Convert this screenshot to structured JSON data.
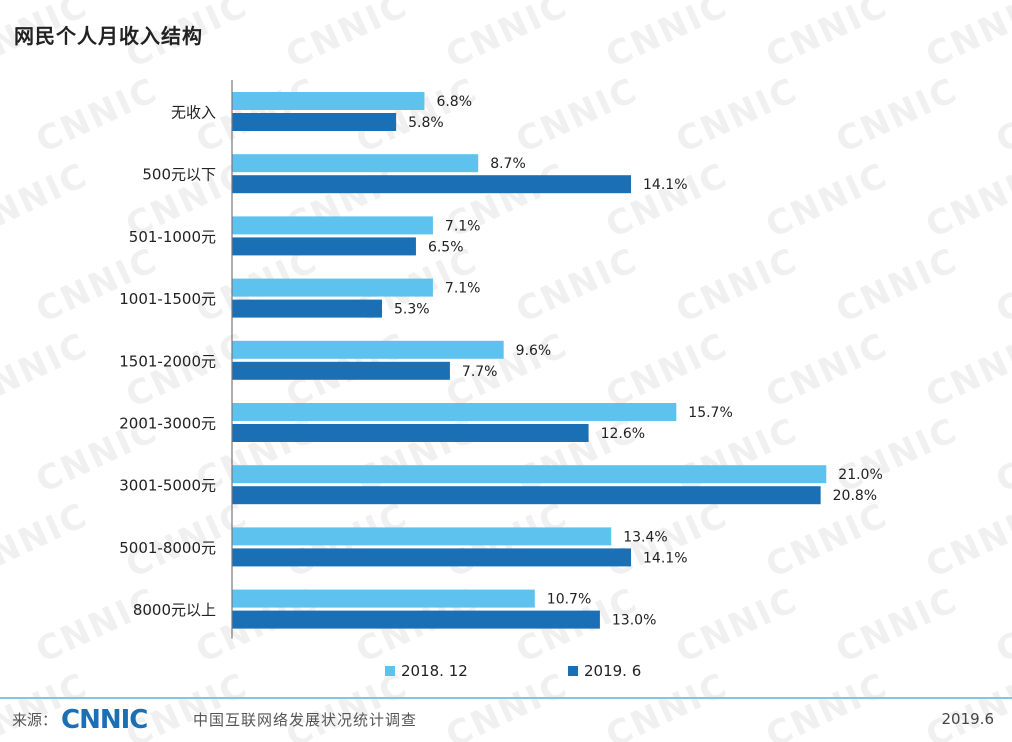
{
  "title": "网民个人月收入结构",
  "watermark_text": "CNNIC",
  "colors": {
    "series_2018_12": "#5ec2ef",
    "series_2019_6": "#1b6fb5",
    "axis": "#777777",
    "label": "#222222",
    "footer_rule": "#7fc6e8",
    "logo": "#1b6fb5"
  },
  "chart_data": {
    "type": "bar",
    "orientation": "horizontal",
    "title": "网民个人月收入结构",
    "categories": [
      "无收入",
      "500元以下",
      "501-1000元",
      "1001-1500元",
      "1501-2000元",
      "2001-3000元",
      "3001-5000元",
      "5001-8000元",
      "8000元以上"
    ],
    "series": [
      {
        "name": "2018. 12",
        "values": [
          6.8,
          8.7,
          7.1,
          7.1,
          9.6,
          15.7,
          21.0,
          13.4,
          10.7
        ],
        "labels": [
          "6.8%",
          "8.7%",
          "7.1%",
          "7.1%",
          "9.6%",
          "15.7%",
          "21.0%",
          "13.4%",
          "10.7%"
        ]
      },
      {
        "name": "2019. 6",
        "values": [
          5.8,
          14.1,
          6.5,
          5.3,
          7.7,
          12.6,
          20.8,
          14.1,
          13.0
        ],
        "labels": [
          "5.8%",
          "14.1%",
          "6.5%",
          "5.3%",
          "7.7%",
          "12.6%",
          "20.8%",
          "14.1%",
          "13.0%"
        ]
      }
    ],
    "unit": "%",
    "legend_position": "bottom-center",
    "grid": false
  },
  "footer": {
    "source_label": "来源：",
    "logo_text": "CNNIC",
    "org_name": "中国互联网络发展状况统计调查",
    "date": "2019.6"
  }
}
